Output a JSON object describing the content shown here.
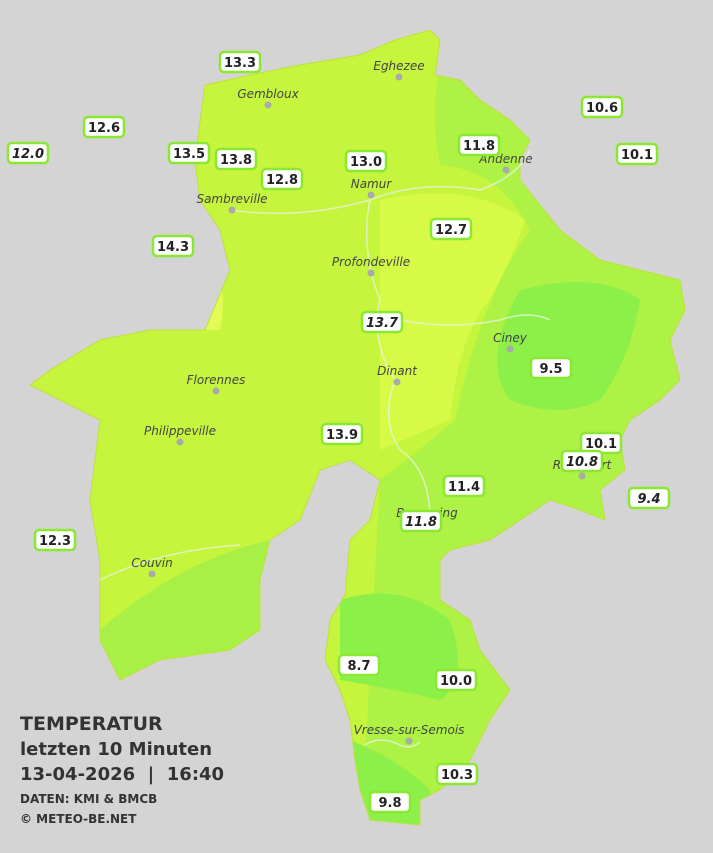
{
  "header": {
    "title": "TEMPERATUR",
    "subtitle": "letzten 10 Minuten",
    "datetime": "13-04-2026  |  16:40",
    "source": "DATEN: KMI & BMCB",
    "credit": "© METEO-BE.NET"
  },
  "cities": [
    "Eghezee",
    "Gembloux",
    "Andenne",
    "Namur",
    "Sambreville",
    "Profondeville",
    "Ciney",
    "Dinant",
    "Florennes",
    "Philippeville",
    "Beauraing",
    "Rochefort",
    "Couvin",
    "Vresse-sur-Semois"
  ],
  "stations": [
    "13.3",
    "12.6",
    "12.0",
    "13.5",
    "13.8",
    "12.8",
    "13.0",
    "11.8",
    "10.6",
    "10.1",
    "14.3",
    "12.7",
    "13.7",
    "9.5",
    "13.9",
    "10.1",
    "10.8",
    "9.4",
    "11.4",
    "11.8",
    "12.3",
    "8.7",
    "10.0",
    "10.3",
    "9.8"
  ]
}
